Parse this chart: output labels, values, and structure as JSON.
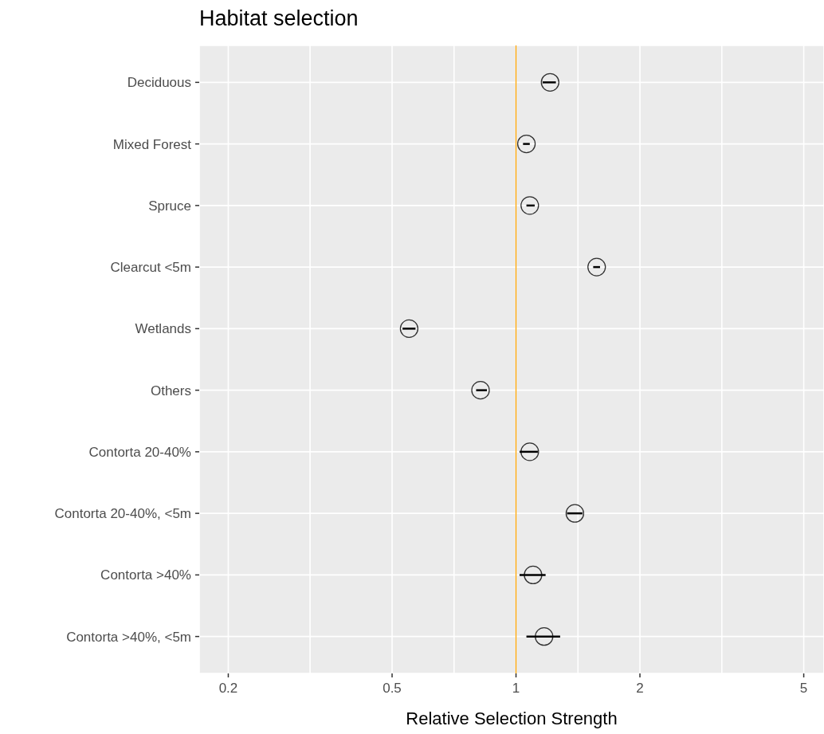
{
  "chart_data": {
    "type": "scatter",
    "title": "Habitat selection",
    "xlabel": "Relative Selection Strength",
    "orientation": "horizontal",
    "log": "x",
    "categories": [
      "Deciduous",
      "Mixed Forest",
      "Spruce",
      "Clearcut <5m",
      "Wetlands",
      "Others",
      "Contorta 20-40%",
      "Contorta 20-40%, <5m",
      "Contorta >40%",
      "Contorta >40%, <5m"
    ],
    "values": [
      1.21,
      1.06,
      1.08,
      1.57,
      0.55,
      0.82,
      1.08,
      1.39,
      1.1,
      1.17
    ],
    "errors": [
      [
        1.16,
        1.25
      ],
      [
        1.04,
        1.08
      ],
      [
        1.06,
        1.11
      ],
      [
        1.54,
        1.6
      ],
      [
        0.53,
        0.57
      ],
      [
        0.8,
        0.85
      ],
      [
        1.02,
        1.13
      ],
      [
        1.33,
        1.45
      ],
      [
        1.02,
        1.18
      ],
      [
        1.06,
        1.28
      ]
    ],
    "color": "#000000",
    "marker": "circle",
    "grid": true,
    "xlim": [
      0.17,
      5.6
    ],
    "xticks": [
      0.2,
      {
        "value": 0.316,
        "label": null
      },
      0.5,
      {
        "value": 0.707,
        "label": null
      },
      1,
      {
        "value": 1.414,
        "label": null
      },
      2,
      {
        "value": 3.162,
        "label": null
      },
      5
    ],
    "ref_lines": [
      {
        "axis": "x",
        "value": 1,
        "color": "#ffa500"
      }
    ]
  }
}
